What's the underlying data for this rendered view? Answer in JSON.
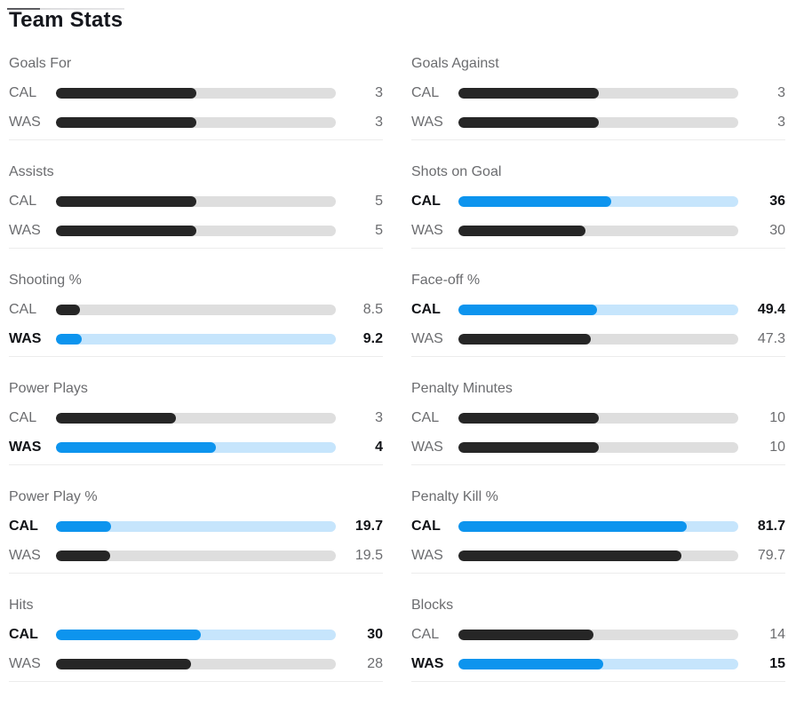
{
  "page": {
    "title": "Team Stats"
  },
  "colors": {
    "leader_fill": "#0d94ee",
    "leader_track": "#c6e5fc",
    "default_fill": "#262626",
    "default_track": "#dedede",
    "divider": "#ececec",
    "muted_text": "#6b6c6f",
    "emphasis_text": "#111317"
  },
  "chart_data": {
    "type": "bar",
    "title": "Team Stats",
    "teams": [
      "CAL",
      "WAS"
    ],
    "layout": "two columns of stat groups; each group has one horizontal comparison bar per team; stat leader shown in blue with bold label and value",
    "sections": [
      {
        "label": "Goals For",
        "column": "left",
        "rows": [
          {
            "team": "CAL",
            "value": "3",
            "fill": "50%",
            "leader": false
          },
          {
            "team": "WAS",
            "value": "3",
            "fill": "50%",
            "leader": false
          }
        ]
      },
      {
        "label": "Assists",
        "column": "left",
        "rows": [
          {
            "team": "CAL",
            "value": "5",
            "fill": "50%",
            "leader": false
          },
          {
            "team": "WAS",
            "value": "5",
            "fill": "50%",
            "leader": false
          }
        ]
      },
      {
        "label": "Shooting %",
        "column": "left",
        "rows": [
          {
            "team": "CAL",
            "value": "8.5",
            "fill": "8.5%",
            "leader": false
          },
          {
            "team": "WAS",
            "value": "9.2",
            "fill": "9.2%",
            "leader": true
          }
        ]
      },
      {
        "label": "Power Plays",
        "column": "left",
        "rows": [
          {
            "team": "CAL",
            "value": "3",
            "fill": "42.9%",
            "leader": false
          },
          {
            "team": "WAS",
            "value": "4",
            "fill": "57.1%",
            "leader": true
          }
        ]
      },
      {
        "label": "Power Play %",
        "column": "left",
        "rows": [
          {
            "team": "CAL",
            "value": "19.7",
            "fill": "19.7%",
            "leader": true
          },
          {
            "team": "WAS",
            "value": "19.5",
            "fill": "19.5%",
            "leader": false
          }
        ]
      },
      {
        "label": "Hits",
        "column": "left",
        "rows": [
          {
            "team": "CAL",
            "value": "30",
            "fill": "51.7%",
            "leader": true
          },
          {
            "team": "WAS",
            "value": "28",
            "fill": "48.3%",
            "leader": false
          }
        ]
      },
      {
        "label": "Goals Against",
        "column": "right",
        "rows": [
          {
            "team": "CAL",
            "value": "3",
            "fill": "50%",
            "leader": false
          },
          {
            "team": "WAS",
            "value": "3",
            "fill": "50%",
            "leader": false
          }
        ]
      },
      {
        "label": "Shots on Goal",
        "column": "right",
        "rows": [
          {
            "team": "CAL",
            "value": "36",
            "fill": "54.5%",
            "leader": true
          },
          {
            "team": "WAS",
            "value": "30",
            "fill": "45.5%",
            "leader": false
          }
        ]
      },
      {
        "label": "Face-off %",
        "column": "right",
        "rows": [
          {
            "team": "CAL",
            "value": "49.4",
            "fill": "49.4%",
            "leader": true
          },
          {
            "team": "WAS",
            "value": "47.3",
            "fill": "47.3%",
            "leader": false
          }
        ]
      },
      {
        "label": "Penalty Minutes",
        "column": "right",
        "rows": [
          {
            "team": "CAL",
            "value": "10",
            "fill": "50%",
            "leader": false
          },
          {
            "team": "WAS",
            "value": "10",
            "fill": "50%",
            "leader": false
          }
        ]
      },
      {
        "label": "Penalty Kill %",
        "column": "right",
        "rows": [
          {
            "team": "CAL",
            "value": "81.7",
            "fill": "81.7%",
            "leader": true
          },
          {
            "team": "WAS",
            "value": "79.7",
            "fill": "79.7%",
            "leader": false
          }
        ]
      },
      {
        "label": "Blocks",
        "column": "right",
        "rows": [
          {
            "team": "CAL",
            "value": "14",
            "fill": "48.3%",
            "leader": false
          },
          {
            "team": "WAS",
            "value": "15",
            "fill": "51.7%",
            "leader": true
          }
        ]
      }
    ]
  }
}
